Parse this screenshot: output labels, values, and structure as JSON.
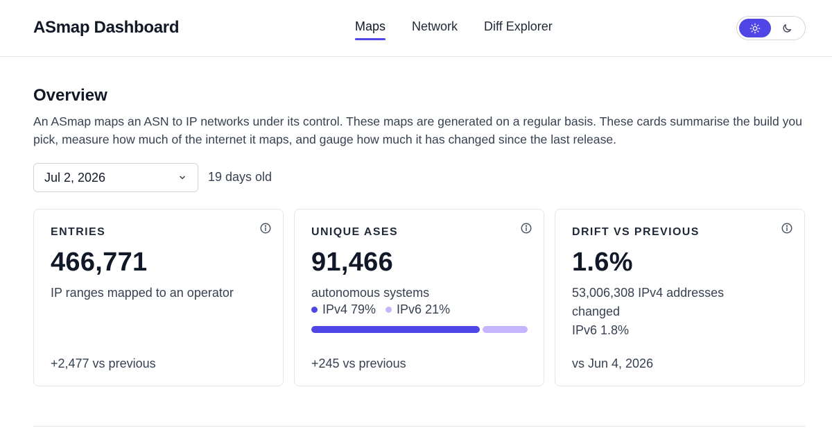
{
  "header": {
    "brand": "ASmap Dashboard",
    "tabs": [
      {
        "label": "Maps",
        "active": true
      },
      {
        "label": "Network",
        "active": false
      },
      {
        "label": "Diff Explorer",
        "active": false
      }
    ],
    "theme_toggle": {
      "options": [
        "sun-icon",
        "moon-icon"
      ],
      "selected": "light",
      "accent": "#4f46e5"
    }
  },
  "overview": {
    "title": "Overview",
    "description": "An ASmap maps an ASN to IP networks under its control. These maps are generated on a regular basis. These cards summarise the build you pick, measure how much of the internet it maps, and gauge how much it has changed since the last release.",
    "build_select": {
      "value": "Jul 2, 2026",
      "icon": "chevron-down-icon"
    },
    "age": "19 days old"
  },
  "cards": {
    "entries": {
      "label": "ENTRIES",
      "value": "466,771",
      "subtitle": "IP ranges mapped to an operator",
      "footer": "+2,477 vs previous",
      "icon": "info-icon"
    },
    "unique_ases": {
      "label": "UNIQUE ASES",
      "value": "91,466",
      "subtitle": "autonomous systems",
      "ipv4_label": "IPv4 79%",
      "ipv6_label": "IPv6 21%",
      "ipv4_share": 0.79,
      "ipv6_share": 0.21,
      "ipv4_color": "#4f46e5",
      "ipv6_color": "#c4b5fd",
      "footer": "+245 vs previous",
      "icon": "info-icon"
    },
    "drift": {
      "label": "DRIFT VS PREVIOUS",
      "value": "1.6%",
      "subtitle": "53,006,308 IPv4 addresses changed",
      "ipv6_line": "IPv6 1.8%",
      "footer": "vs Jun 4, 2026",
      "icon": "info-icon"
    }
  }
}
